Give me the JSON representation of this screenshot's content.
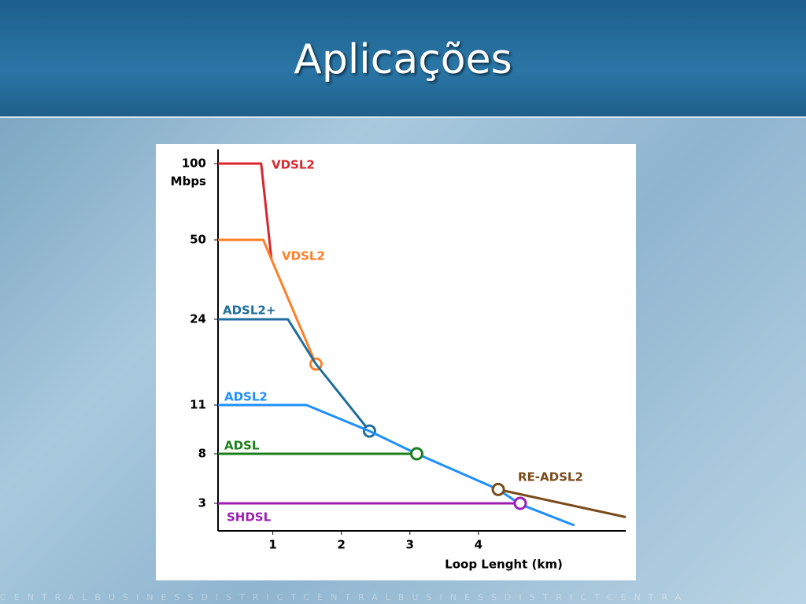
{
  "slide_title": "Aplicações",
  "footer_pattern": "CENTRALBUSINESSDISTRICTCENTRALBUSINESSDISTRICTCENTRA",
  "chart_data": {
    "type": "line",
    "x_label": "Loop Lenght (km)",
    "y_label": "Mbps",
    "xlim": [
      0.2,
      6.15
    ],
    "xticks": [
      1,
      2,
      3,
      4
    ],
    "ylim": [
      0,
      100
    ],
    "yticks": [
      100,
      50,
      24,
      11,
      8,
      3
    ],
    "series": [
      {
        "name": "VDSL2",
        "color": "#d9262e",
        "x": [
          0.2,
          0.83,
          0.98
        ],
        "values": [
          100,
          100,
          43.6
        ],
        "start_marker": false,
        "end_marker": false
      },
      {
        "name": "VDSL2",
        "color": "#ff7f27",
        "x": [
          0.2,
          0.86,
          0.98,
          1.63
        ],
        "values": [
          50,
          50,
          43.6,
          17.2
        ],
        "start_marker": false,
        "end_marker": true
      },
      {
        "name": "ADSL2+",
        "color": "#1f6e9c",
        "x": [
          0.2,
          1.22,
          1.63,
          2.41
        ],
        "values": [
          24,
          24,
          17.2,
          9.4
        ],
        "start_marker": false,
        "end_marker": true
      },
      {
        "name": "ADSL2",
        "color": "#1e8fff",
        "x": [
          0.2,
          1.49,
          2.41,
          3.1,
          4.29,
          4.61,
          5.4
        ],
        "values": [
          11,
          11,
          9.4,
          8,
          4.4,
          2.9,
          0.6
        ],
        "start_marker": false,
        "end_marker": false
      },
      {
        "name": "ADSL",
        "color": "#1a7f1a",
        "x": [
          0.2,
          3.1
        ],
        "values": [
          8,
          8
        ],
        "start_marker": false,
        "end_marker": true
      },
      {
        "name": "SHDSL",
        "color": "#9b1fb5",
        "x": [
          0.2,
          4.61
        ],
        "values": [
          3,
          3
        ],
        "start_marker": false,
        "end_marker": true
      },
      {
        "name": "RE-ADSL2",
        "color": "#7a4a1a",
        "x": [
          4.29,
          6.15
        ],
        "values": [
          4.4,
          1.5
        ],
        "start_marker": true,
        "end_marker": false
      }
    ]
  }
}
